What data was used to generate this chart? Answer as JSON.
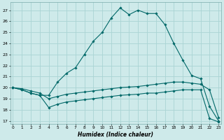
{
  "xlabel": "Humidex (Indice chaleur)",
  "background_color": "#ceeaea",
  "grid_color": "#aad4d4",
  "line_color": "#006868",
  "x_ticks": [
    0,
    1,
    2,
    3,
    4,
    5,
    6,
    7,
    8,
    9,
    10,
    11,
    12,
    13,
    14,
    15,
    16,
    17,
    18,
    19,
    20,
    21,
    22,
    23
  ],
  "yticks": [
    17,
    18,
    19,
    20,
    21,
    22,
    23,
    24,
    25,
    26,
    27
  ],
  "ylim": [
    16.7,
    27.7
  ],
  "xlim": [
    -0.3,
    23.3
  ],
  "line1_y": [
    20.0,
    19.8,
    19.5,
    19.3,
    19.3,
    20.5,
    21.3,
    21.8,
    23.0,
    24.2,
    25.0,
    26.3,
    27.2,
    26.6,
    27.0,
    26.7,
    26.7,
    25.7,
    24.0,
    22.5,
    21.1,
    20.8,
    18.3,
    17.0
  ],
  "line2_y": [
    20.0,
    19.9,
    19.7,
    19.5,
    19.0,
    19.2,
    19.4,
    19.5,
    19.6,
    19.7,
    19.8,
    19.9,
    20.0,
    20.05,
    20.1,
    20.2,
    20.3,
    20.4,
    20.5,
    20.5,
    20.4,
    20.3,
    19.8,
    17.3
  ],
  "line3_y": [
    20.0,
    19.8,
    19.5,
    19.3,
    18.2,
    18.5,
    18.7,
    18.8,
    18.9,
    19.0,
    19.1,
    19.2,
    19.3,
    19.35,
    19.4,
    19.5,
    19.5,
    19.6,
    19.7,
    19.8,
    19.8,
    19.8,
    17.2,
    16.9
  ]
}
